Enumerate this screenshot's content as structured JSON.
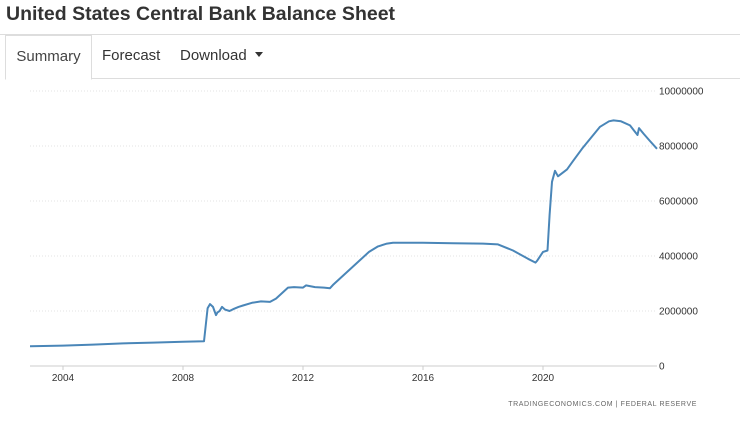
{
  "header": {
    "title": "United States Central Bank Balance Sheet"
  },
  "tabs": [
    {
      "label": "Summary",
      "active": true
    },
    {
      "label": "Forecast",
      "active": false
    },
    {
      "label": "Download",
      "active": false
    }
  ],
  "source_text": "TRADINGECONOMICS.COM  |  FEDERAL RESERVE",
  "colors": {
    "line": "#4a86b8",
    "grid": "#e3e3e3",
    "text": "#333333"
  },
  "chart_data": {
    "type": "line",
    "title": "United States Central Bank Balance Sheet",
    "xlabel": "",
    "ylabel": "",
    "xlim": [
      2002.9,
      2023.8
    ],
    "ylim": [
      0,
      10000000
    ],
    "x_ticks": [
      "2004",
      "2008",
      "2012",
      "2016",
      "2020"
    ],
    "y_ticks": [
      "0",
      "2000000",
      "4000000",
      "6000000",
      "8000000",
      "10000000"
    ],
    "grid": "horizontal",
    "legend": "none",
    "series": [
      {
        "x": [
          2002.9,
          2004,
          2005,
          2006,
          2007,
          2008,
          2008.7,
          2008.82,
          2008.9,
          2009.0,
          2009.1,
          2009.15,
          2009.22,
          2009.3,
          2009.4,
          2009.55,
          2009.7,
          2009.85,
          2010.0,
          2010.3,
          2010.6,
          2010.9,
          2011.1,
          2011.3,
          2011.5,
          2011.7,
          2012.0,
          2012.1,
          2012.4,
          2012.7,
          2012.9,
          2013.0,
          2013.3,
          2013.6,
          2013.9,
          2014.2,
          2014.5,
          2014.8,
          2015.0,
          2016.0,
          2017.0,
          2018.0,
          2018.5,
          2019.0,
          2019.5,
          2019.75,
          2019.8,
          2020.0,
          2020.15,
          2020.22,
          2020.3,
          2020.4,
          2020.5,
          2020.8,
          2021.0,
          2021.3,
          2021.6,
          2021.9,
          2022.2,
          2022.35,
          2022.6,
          2022.9,
          2023.15,
          2023.2,
          2023.35,
          2023.55,
          2023.8
        ],
        "values": [
          720000,
          740000,
          780000,
          820000,
          850000,
          880000,
          900000,
          2100000,
          2250000,
          2150000,
          1850000,
          1950000,
          2000000,
          2150000,
          2050000,
          2000000,
          2080000,
          2150000,
          2200000,
          2300000,
          2350000,
          2330000,
          2450000,
          2650000,
          2850000,
          2870000,
          2850000,
          2930000,
          2870000,
          2850000,
          2830000,
          2950000,
          3250000,
          3550000,
          3850000,
          4150000,
          4350000,
          4450000,
          4480000,
          4480000,
          4460000,
          4450000,
          4420000,
          4200000,
          3900000,
          3760000,
          3820000,
          4150000,
          4200000,
          5500000,
          6700000,
          7100000,
          6900000,
          7150000,
          7450000,
          7900000,
          8300000,
          8700000,
          8900000,
          8930000,
          8900000,
          8750000,
          8400000,
          8650000,
          8450000,
          8200000,
          7900000
        ]
      }
    ]
  }
}
